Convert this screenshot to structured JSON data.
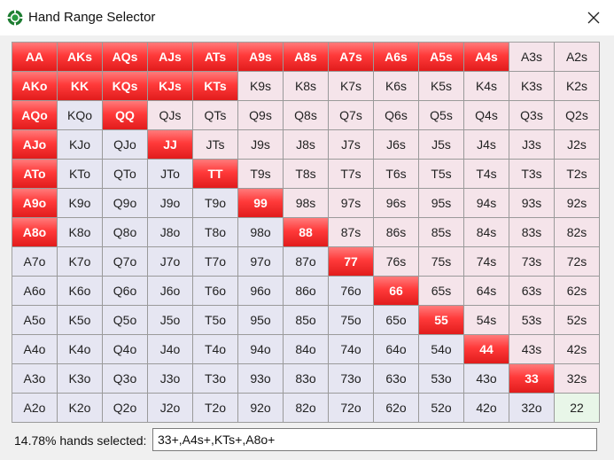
{
  "window": {
    "title": "Hand Range Selector",
    "icon": "poker-chip-icon",
    "close_icon": "close-icon"
  },
  "grid": {
    "rows": [
      [
        {
          "label": "AA",
          "type": "pair",
          "selected": true
        },
        {
          "label": "AKs",
          "type": "suited",
          "selected": true
        },
        {
          "label": "AQs",
          "type": "suited",
          "selected": true
        },
        {
          "label": "AJs",
          "type": "suited",
          "selected": true
        },
        {
          "label": "ATs",
          "type": "suited",
          "selected": true
        },
        {
          "label": "A9s",
          "type": "suited",
          "selected": true
        },
        {
          "label": "A8s",
          "type": "suited",
          "selected": true
        },
        {
          "label": "A7s",
          "type": "suited",
          "selected": true
        },
        {
          "label": "A6s",
          "type": "suited",
          "selected": true
        },
        {
          "label": "A5s",
          "type": "suited",
          "selected": true
        },
        {
          "label": "A4s",
          "type": "suited",
          "selected": true
        },
        {
          "label": "A3s",
          "type": "suited",
          "selected": false
        },
        {
          "label": "A2s",
          "type": "suited",
          "selected": false
        }
      ],
      [
        {
          "label": "AKo",
          "type": "offsuit",
          "selected": true
        },
        {
          "label": "KK",
          "type": "pair",
          "selected": true
        },
        {
          "label": "KQs",
          "type": "suited",
          "selected": true
        },
        {
          "label": "KJs",
          "type": "suited",
          "selected": true
        },
        {
          "label": "KTs",
          "type": "suited",
          "selected": true
        },
        {
          "label": "K9s",
          "type": "suited",
          "selected": false
        },
        {
          "label": "K8s",
          "type": "suited",
          "selected": false
        },
        {
          "label": "K7s",
          "type": "suited",
          "selected": false
        },
        {
          "label": "K6s",
          "type": "suited",
          "selected": false
        },
        {
          "label": "K5s",
          "type": "suited",
          "selected": false
        },
        {
          "label": "K4s",
          "type": "suited",
          "selected": false
        },
        {
          "label": "K3s",
          "type": "suited",
          "selected": false
        },
        {
          "label": "K2s",
          "type": "suited",
          "selected": false
        }
      ],
      [
        {
          "label": "AQo",
          "type": "offsuit",
          "selected": true
        },
        {
          "label": "KQo",
          "type": "offsuit",
          "selected": false
        },
        {
          "label": "QQ",
          "type": "pair",
          "selected": true
        },
        {
          "label": "QJs",
          "type": "suited",
          "selected": false
        },
        {
          "label": "QTs",
          "type": "suited",
          "selected": false
        },
        {
          "label": "Q9s",
          "type": "suited",
          "selected": false
        },
        {
          "label": "Q8s",
          "type": "suited",
          "selected": false
        },
        {
          "label": "Q7s",
          "type": "suited",
          "selected": false
        },
        {
          "label": "Q6s",
          "type": "suited",
          "selected": false
        },
        {
          "label": "Q5s",
          "type": "suited",
          "selected": false
        },
        {
          "label": "Q4s",
          "type": "suited",
          "selected": false
        },
        {
          "label": "Q3s",
          "type": "suited",
          "selected": false
        },
        {
          "label": "Q2s",
          "type": "suited",
          "selected": false
        }
      ],
      [
        {
          "label": "AJo",
          "type": "offsuit",
          "selected": true
        },
        {
          "label": "KJo",
          "type": "offsuit",
          "selected": false
        },
        {
          "label": "QJo",
          "type": "offsuit",
          "selected": false
        },
        {
          "label": "JJ",
          "type": "pair",
          "selected": true
        },
        {
          "label": "JTs",
          "type": "suited",
          "selected": false
        },
        {
          "label": "J9s",
          "type": "suited",
          "selected": false
        },
        {
          "label": "J8s",
          "type": "suited",
          "selected": false
        },
        {
          "label": "J7s",
          "type": "suited",
          "selected": false
        },
        {
          "label": "J6s",
          "type": "suited",
          "selected": false
        },
        {
          "label": "J5s",
          "type": "suited",
          "selected": false
        },
        {
          "label": "J4s",
          "type": "suited",
          "selected": false
        },
        {
          "label": "J3s",
          "type": "suited",
          "selected": false
        },
        {
          "label": "J2s",
          "type": "suited",
          "selected": false
        }
      ],
      [
        {
          "label": "ATo",
          "type": "offsuit",
          "selected": true
        },
        {
          "label": "KTo",
          "type": "offsuit",
          "selected": false
        },
        {
          "label": "QTo",
          "type": "offsuit",
          "selected": false
        },
        {
          "label": "JTo",
          "type": "offsuit",
          "selected": false
        },
        {
          "label": "TT",
          "type": "pair",
          "selected": true
        },
        {
          "label": "T9s",
          "type": "suited",
          "selected": false
        },
        {
          "label": "T8s",
          "type": "suited",
          "selected": false
        },
        {
          "label": "T7s",
          "type": "suited",
          "selected": false
        },
        {
          "label": "T6s",
          "type": "suited",
          "selected": false
        },
        {
          "label": "T5s",
          "type": "suited",
          "selected": false
        },
        {
          "label": "T4s",
          "type": "suited",
          "selected": false
        },
        {
          "label": "T3s",
          "type": "suited",
          "selected": false
        },
        {
          "label": "T2s",
          "type": "suited",
          "selected": false
        }
      ],
      [
        {
          "label": "A9o",
          "type": "offsuit",
          "selected": true
        },
        {
          "label": "K9o",
          "type": "offsuit",
          "selected": false
        },
        {
          "label": "Q9o",
          "type": "offsuit",
          "selected": false
        },
        {
          "label": "J9o",
          "type": "offsuit",
          "selected": false
        },
        {
          "label": "T9o",
          "type": "offsuit",
          "selected": false
        },
        {
          "label": "99",
          "type": "pair",
          "selected": true
        },
        {
          "label": "98s",
          "type": "suited",
          "selected": false
        },
        {
          "label": "97s",
          "type": "suited",
          "selected": false
        },
        {
          "label": "96s",
          "type": "suited",
          "selected": false
        },
        {
          "label": "95s",
          "type": "suited",
          "selected": false
        },
        {
          "label": "94s",
          "type": "suited",
          "selected": false
        },
        {
          "label": "93s",
          "type": "suited",
          "selected": false
        },
        {
          "label": "92s",
          "type": "suited",
          "selected": false
        }
      ],
      [
        {
          "label": "A8o",
          "type": "offsuit",
          "selected": true
        },
        {
          "label": "K8o",
          "type": "offsuit",
          "selected": false
        },
        {
          "label": "Q8o",
          "type": "offsuit",
          "selected": false
        },
        {
          "label": "J8o",
          "type": "offsuit",
          "selected": false
        },
        {
          "label": "T8o",
          "type": "offsuit",
          "selected": false
        },
        {
          "label": "98o",
          "type": "offsuit",
          "selected": false
        },
        {
          "label": "88",
          "type": "pair",
          "selected": true
        },
        {
          "label": "87s",
          "type": "suited",
          "selected": false
        },
        {
          "label": "86s",
          "type": "suited",
          "selected": false
        },
        {
          "label": "85s",
          "type": "suited",
          "selected": false
        },
        {
          "label": "84s",
          "type": "suited",
          "selected": false
        },
        {
          "label": "83s",
          "type": "suited",
          "selected": false
        },
        {
          "label": "82s",
          "type": "suited",
          "selected": false
        }
      ],
      [
        {
          "label": "A7o",
          "type": "offsuit",
          "selected": false
        },
        {
          "label": "K7o",
          "type": "offsuit",
          "selected": false
        },
        {
          "label": "Q7o",
          "type": "offsuit",
          "selected": false
        },
        {
          "label": "J7o",
          "type": "offsuit",
          "selected": false
        },
        {
          "label": "T7o",
          "type": "offsuit",
          "selected": false
        },
        {
          "label": "97o",
          "type": "offsuit",
          "selected": false
        },
        {
          "label": "87o",
          "type": "offsuit",
          "selected": false
        },
        {
          "label": "77",
          "type": "pair",
          "selected": true
        },
        {
          "label": "76s",
          "type": "suited",
          "selected": false
        },
        {
          "label": "75s",
          "type": "suited",
          "selected": false
        },
        {
          "label": "74s",
          "type": "suited",
          "selected": false
        },
        {
          "label": "73s",
          "type": "suited",
          "selected": false
        },
        {
          "label": "72s",
          "type": "suited",
          "selected": false
        }
      ],
      [
        {
          "label": "A6o",
          "type": "offsuit",
          "selected": false
        },
        {
          "label": "K6o",
          "type": "offsuit",
          "selected": false
        },
        {
          "label": "Q6o",
          "type": "offsuit",
          "selected": false
        },
        {
          "label": "J6o",
          "type": "offsuit",
          "selected": false
        },
        {
          "label": "T6o",
          "type": "offsuit",
          "selected": false
        },
        {
          "label": "96o",
          "type": "offsuit",
          "selected": false
        },
        {
          "label": "86o",
          "type": "offsuit",
          "selected": false
        },
        {
          "label": "76o",
          "type": "offsuit",
          "selected": false
        },
        {
          "label": "66",
          "type": "pair",
          "selected": true
        },
        {
          "label": "65s",
          "type": "suited",
          "selected": false
        },
        {
          "label": "64s",
          "type": "suited",
          "selected": false
        },
        {
          "label": "63s",
          "type": "suited",
          "selected": false
        },
        {
          "label": "62s",
          "type": "suited",
          "selected": false
        }
      ],
      [
        {
          "label": "A5o",
          "type": "offsuit",
          "selected": false
        },
        {
          "label": "K5o",
          "type": "offsuit",
          "selected": false
        },
        {
          "label": "Q5o",
          "type": "offsuit",
          "selected": false
        },
        {
          "label": "J5o",
          "type": "offsuit",
          "selected": false
        },
        {
          "label": "T5o",
          "type": "offsuit",
          "selected": false
        },
        {
          "label": "95o",
          "type": "offsuit",
          "selected": false
        },
        {
          "label": "85o",
          "type": "offsuit",
          "selected": false
        },
        {
          "label": "75o",
          "type": "offsuit",
          "selected": false
        },
        {
          "label": "65o",
          "type": "offsuit",
          "selected": false
        },
        {
          "label": "55",
          "type": "pair",
          "selected": true
        },
        {
          "label": "54s",
          "type": "suited",
          "selected": false
        },
        {
          "label": "53s",
          "type": "suited",
          "selected": false
        },
        {
          "label": "52s",
          "type": "suited",
          "selected": false
        }
      ],
      [
        {
          "label": "A4o",
          "type": "offsuit",
          "selected": false
        },
        {
          "label": "K4o",
          "type": "offsuit",
          "selected": false
        },
        {
          "label": "Q4o",
          "type": "offsuit",
          "selected": false
        },
        {
          "label": "J4o",
          "type": "offsuit",
          "selected": false
        },
        {
          "label": "T4o",
          "type": "offsuit",
          "selected": false
        },
        {
          "label": "94o",
          "type": "offsuit",
          "selected": false
        },
        {
          "label": "84o",
          "type": "offsuit",
          "selected": false
        },
        {
          "label": "74o",
          "type": "offsuit",
          "selected": false
        },
        {
          "label": "64o",
          "type": "offsuit",
          "selected": false
        },
        {
          "label": "54o",
          "type": "offsuit",
          "selected": false
        },
        {
          "label": "44",
          "type": "pair",
          "selected": true
        },
        {
          "label": "43s",
          "type": "suited",
          "selected": false
        },
        {
          "label": "42s",
          "type": "suited",
          "selected": false
        }
      ],
      [
        {
          "label": "A3o",
          "type": "offsuit",
          "selected": false
        },
        {
          "label": "K3o",
          "type": "offsuit",
          "selected": false
        },
        {
          "label": "Q3o",
          "type": "offsuit",
          "selected": false
        },
        {
          "label": "J3o",
          "type": "offsuit",
          "selected": false
        },
        {
          "label": "T3o",
          "type": "offsuit",
          "selected": false
        },
        {
          "label": "93o",
          "type": "offsuit",
          "selected": false
        },
        {
          "label": "83o",
          "type": "offsuit",
          "selected": false
        },
        {
          "label": "73o",
          "type": "offsuit",
          "selected": false
        },
        {
          "label": "63o",
          "type": "offsuit",
          "selected": false
        },
        {
          "label": "53o",
          "type": "offsuit",
          "selected": false
        },
        {
          "label": "43o",
          "type": "offsuit",
          "selected": false
        },
        {
          "label": "33",
          "type": "pair",
          "selected": true
        },
        {
          "label": "32s",
          "type": "suited",
          "selected": false
        }
      ],
      [
        {
          "label": "A2o",
          "type": "offsuit",
          "selected": false
        },
        {
          "label": "K2o",
          "type": "offsuit",
          "selected": false
        },
        {
          "label": "Q2o",
          "type": "offsuit",
          "selected": false
        },
        {
          "label": "J2o",
          "type": "offsuit",
          "selected": false
        },
        {
          "label": "T2o",
          "type": "offsuit",
          "selected": false
        },
        {
          "label": "92o",
          "type": "offsuit",
          "selected": false
        },
        {
          "label": "82o",
          "type": "offsuit",
          "selected": false
        },
        {
          "label": "72o",
          "type": "offsuit",
          "selected": false
        },
        {
          "label": "62o",
          "type": "offsuit",
          "selected": false
        },
        {
          "label": "52o",
          "type": "offsuit",
          "selected": false
        },
        {
          "label": "42o",
          "type": "offsuit",
          "selected": false
        },
        {
          "label": "32o",
          "type": "offsuit",
          "selected": false
        },
        {
          "label": "22",
          "type": "pair",
          "selected": false
        }
      ]
    ]
  },
  "status": {
    "selected_label": "14.78% hands selected:",
    "range_value": "33+,A4s+,KTs+,A8o+"
  },
  "colors": {
    "selected": "#ff3a3a",
    "pair": "#e8f6e8",
    "suited": "#f5e4ea",
    "offsuit": "#e6e6f2"
  }
}
